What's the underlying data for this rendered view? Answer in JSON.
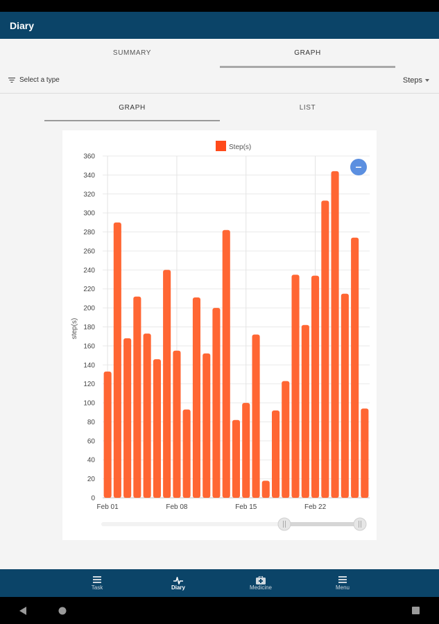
{
  "app": {
    "title": "Diary"
  },
  "tabs": [
    {
      "label": "SUMMARY"
    },
    {
      "label": "GRAPH"
    }
  ],
  "filter": {
    "label": "Select a type",
    "selected": "Steps"
  },
  "subtabs": [
    {
      "label": "GRAPH"
    },
    {
      "label": "LIST"
    }
  ],
  "bottom_nav": [
    {
      "label": "Task",
      "icon": "list-icon"
    },
    {
      "label": "Diary",
      "icon": "pulse-icon"
    },
    {
      "label": "Medicine",
      "icon": "medical-kit-icon"
    },
    {
      "label": "Menu",
      "icon": "menu-icon"
    }
  ],
  "colors": {
    "bar": "#ff6633",
    "legend": "#ff4a1a",
    "appbar": "#0b4468",
    "zoom_button": "#5b8fe0"
  },
  "chart_data": {
    "type": "bar",
    "legend": [
      "Step(s)"
    ],
    "ylabel": "step(s)",
    "xlabel": "",
    "ylim": [
      0,
      360
    ],
    "yticks": [
      0,
      20,
      40,
      60,
      80,
      100,
      120,
      140,
      160,
      180,
      200,
      220,
      240,
      260,
      280,
      300,
      320,
      340,
      360
    ],
    "xtick_labels": [
      "Feb 01",
      "Feb 08",
      "Feb 15",
      "Feb 22"
    ],
    "xtick_positions": [
      0,
      7,
      14,
      21
    ],
    "categories": [
      "Feb 01",
      "Feb 02",
      "Feb 03",
      "Feb 04",
      "Feb 05",
      "Feb 06",
      "Feb 07",
      "Feb 08",
      "Feb 09",
      "Feb 10",
      "Feb 11",
      "Feb 12",
      "Feb 13",
      "Feb 14",
      "Feb 15",
      "Feb 16",
      "Feb 17",
      "Feb 18",
      "Feb 19",
      "Feb 20",
      "Feb 21",
      "Feb 22",
      "Feb 23",
      "Feb 24",
      "Feb 25",
      "Feb 26",
      "Feb 27"
    ],
    "values": [
      133,
      290,
      168,
      212,
      173,
      146,
      240,
      155,
      93,
      211,
      152,
      200,
      282,
      82,
      100,
      172,
      18,
      92,
      123,
      235,
      182,
      234,
      313,
      344,
      215,
      274,
      94
    ],
    "grid": true,
    "legend_position": "top-center"
  }
}
